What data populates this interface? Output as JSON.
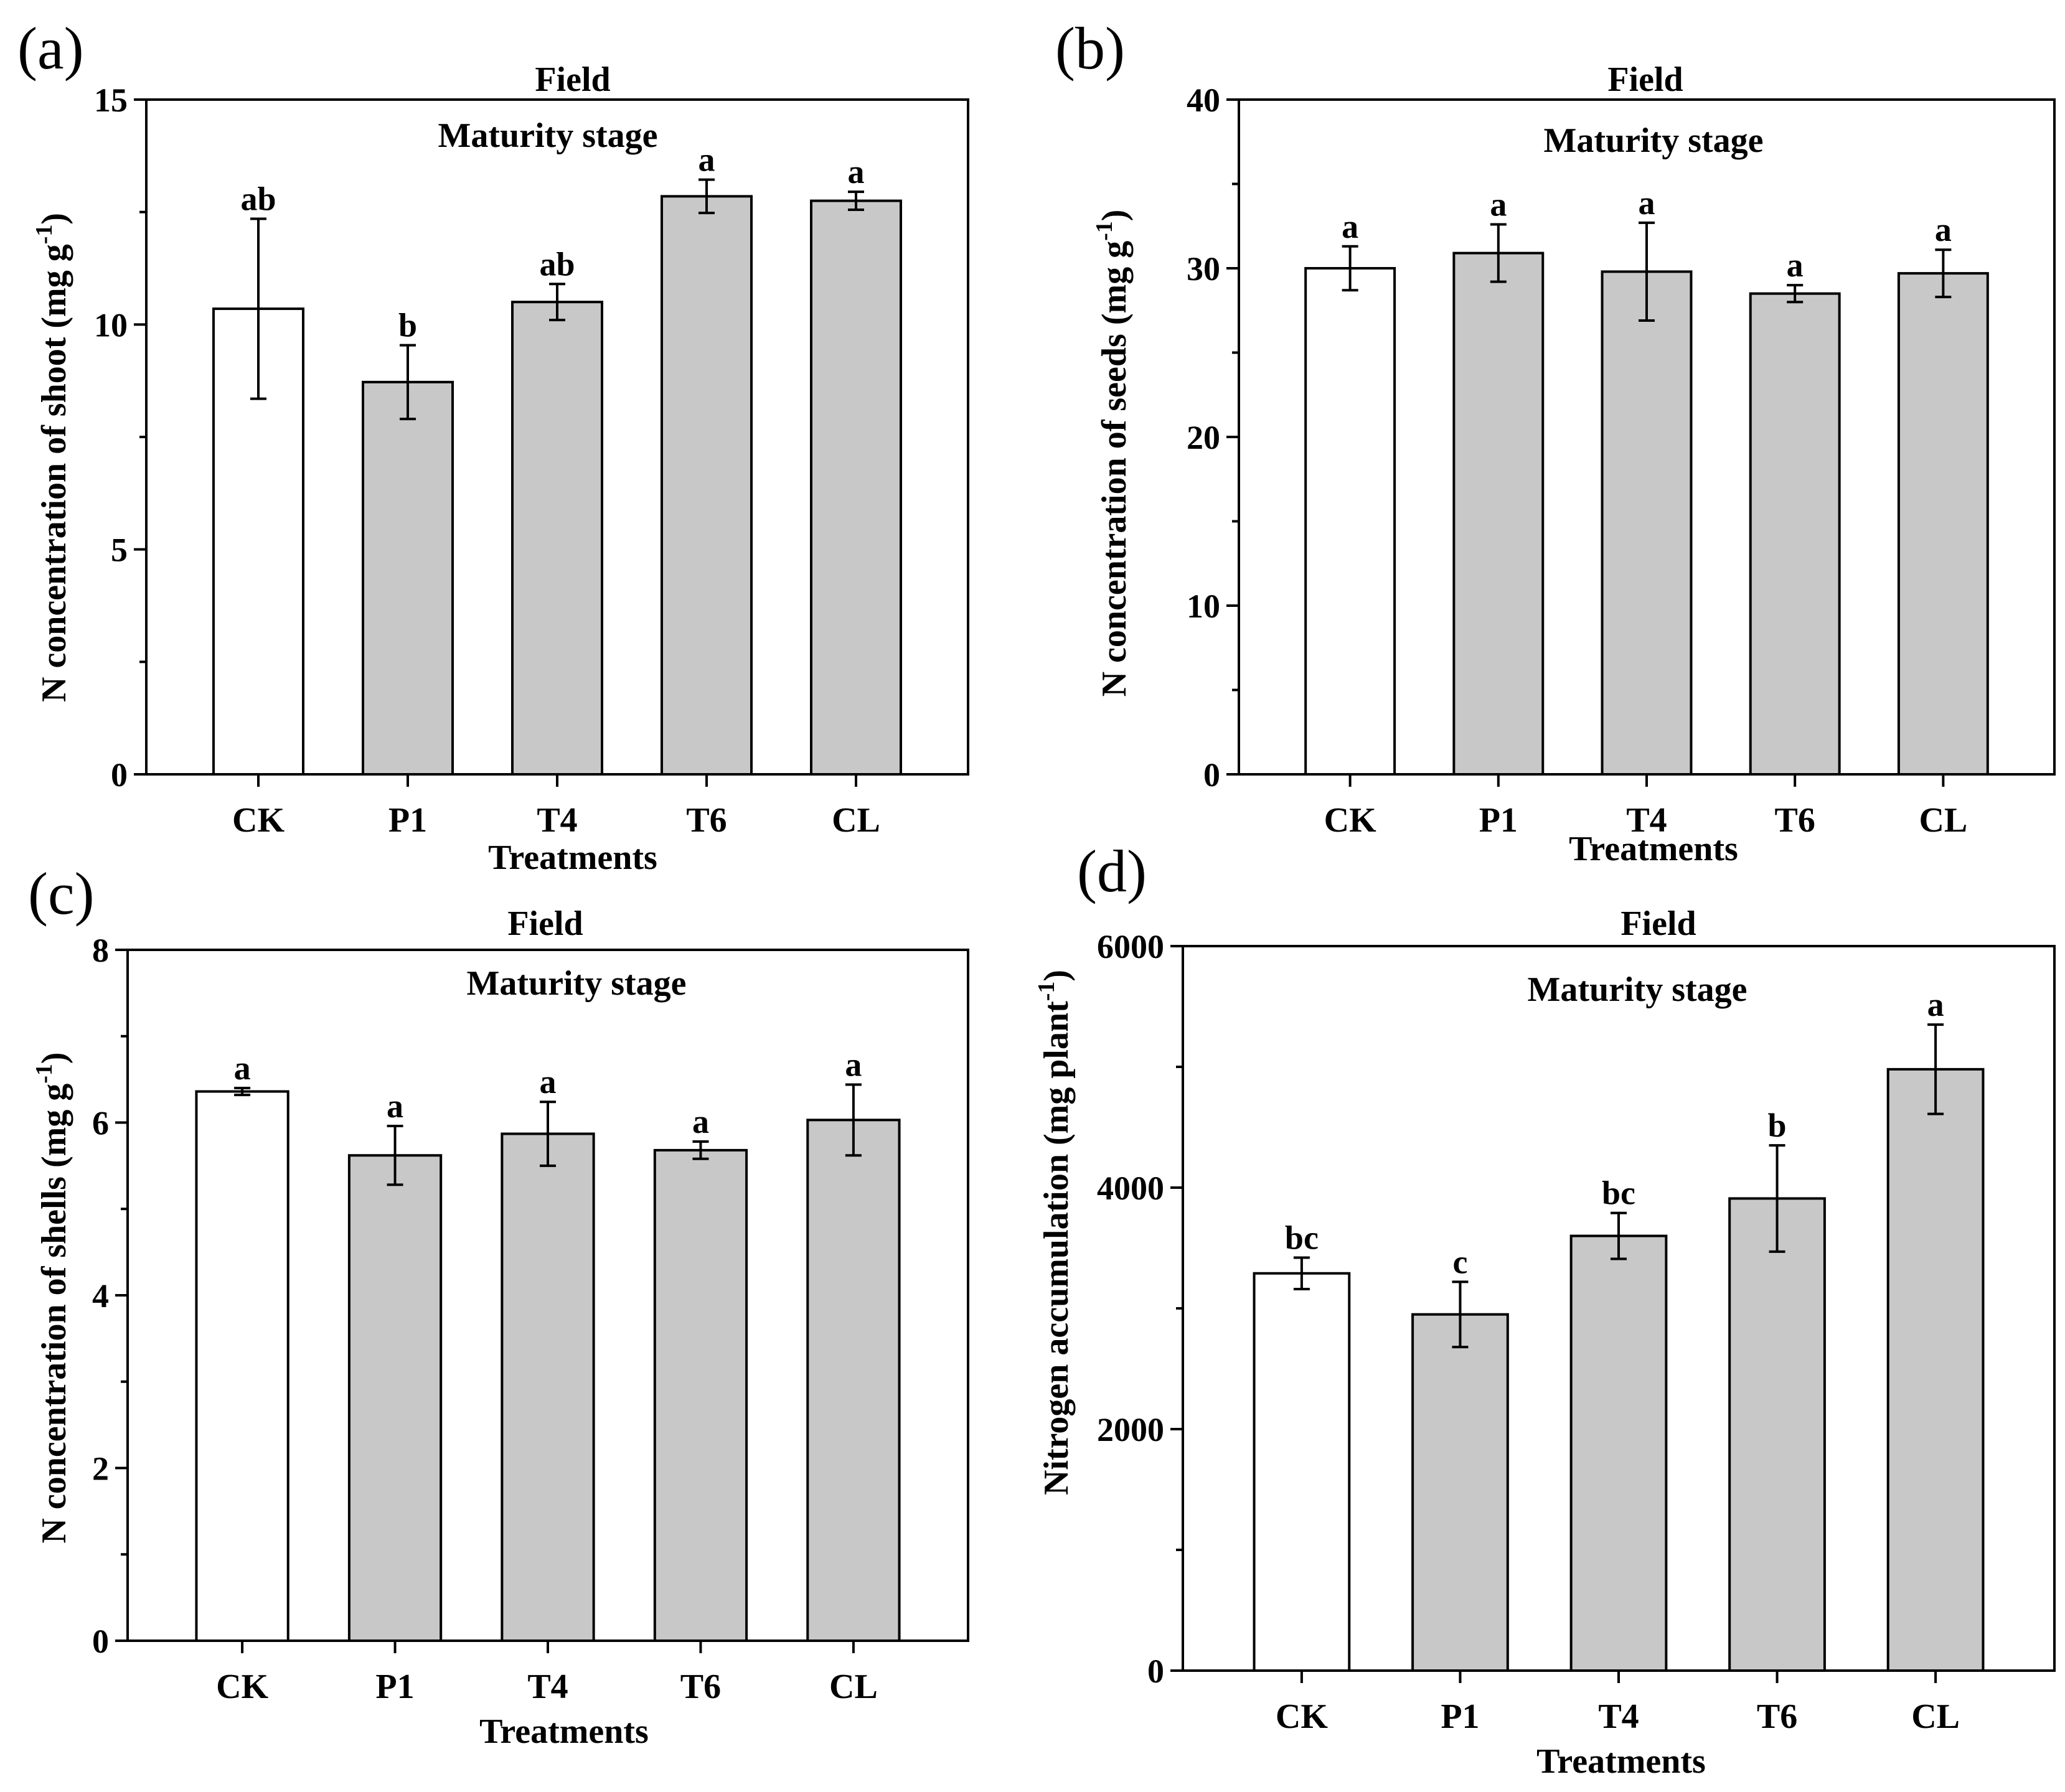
{
  "colors": {
    "control_fill": "#ffffff",
    "treatment_fill": "#c8c8c8",
    "stroke": "#000000"
  },
  "chart_data": [
    {
      "panel_label": "(a)",
      "type": "bar",
      "title": "Field",
      "subtitle": "Maturity stage",
      "xlabel": "Treatments",
      "ylabel_main": "N concentration of shoot (mg g",
      "ylabel_sup": "-1",
      "ylabel_end": ")",
      "categories": [
        "CK",
        "P1",
        "T4",
        "T6",
        "CL"
      ],
      "values": [
        10.35,
        8.72,
        10.5,
        12.85,
        12.75
      ],
      "errors": [
        2.0,
        0.82,
        0.4,
        0.37,
        0.2
      ],
      "letters": [
        "ab",
        "b",
        "ab",
        "a",
        "a"
      ],
      "ylim": [
        0,
        15
      ],
      "yticks": [
        "0",
        "5",
        "10",
        "15"
      ]
    },
    {
      "panel_label": "(b)",
      "type": "bar",
      "title": "Field",
      "subtitle": "Maturity stage",
      "xlabel": "Treatments",
      "ylabel_main": "N concentration of seeds (mg g",
      "ylabel_sup": "-1",
      "ylabel_end": ")",
      "categories": [
        "CK",
        "P1",
        "T4",
        "T6",
        "CL"
      ],
      "values": [
        30.0,
        30.9,
        29.8,
        28.5,
        29.7
      ],
      "errors": [
        1.3,
        1.7,
        2.9,
        0.5,
        1.4
      ],
      "letters": [
        "a",
        "a",
        "a",
        "a",
        "a"
      ],
      "ylim": [
        0,
        40
      ],
      "yticks": [
        "0",
        "10",
        "20",
        "30",
        "40"
      ]
    },
    {
      "panel_label": "(c)",
      "type": "bar",
      "title": "Field",
      "subtitle": "Maturity stage",
      "xlabel": "Treatments",
      "ylabel_main": "N concentration of shells (mg g",
      "ylabel_sup": "-1",
      "ylabel_end": ")",
      "categories": [
        "CK",
        "P1",
        "T4",
        "T6",
        "CL"
      ],
      "values": [
        6.36,
        5.62,
        5.87,
        5.68,
        6.03
      ],
      "errors": [
        0.04,
        0.34,
        0.37,
        0.1,
        0.41
      ],
      "letters": [
        "a",
        "a",
        "a",
        "a",
        "a"
      ],
      "ylim": [
        0,
        8
      ],
      "yticks": [
        "0",
        "2",
        "4",
        "6",
        "8"
      ]
    },
    {
      "panel_label": "(d)",
      "type": "bar",
      "title": "Field",
      "subtitle": "Maturity stage",
      "xlabel": "Treatments",
      "ylabel_main": "Nitrogen accumulation (mg plant",
      "ylabel_sup": "-1",
      "ylabel_end": ")",
      "categories": [
        "CK",
        "P1",
        "T4",
        "T6",
        "CL"
      ],
      "values": [
        3290,
        2950,
        3600,
        3910,
        4980
      ],
      "errors": [
        130,
        270,
        190,
        440,
        370
      ],
      "letters": [
        "bc",
        "c",
        "bc",
        "b",
        "a"
      ],
      "ylim": [
        0,
        6000
      ],
      "yticks": [
        "0",
        "2000",
        "4000",
        "6000"
      ]
    }
  ]
}
